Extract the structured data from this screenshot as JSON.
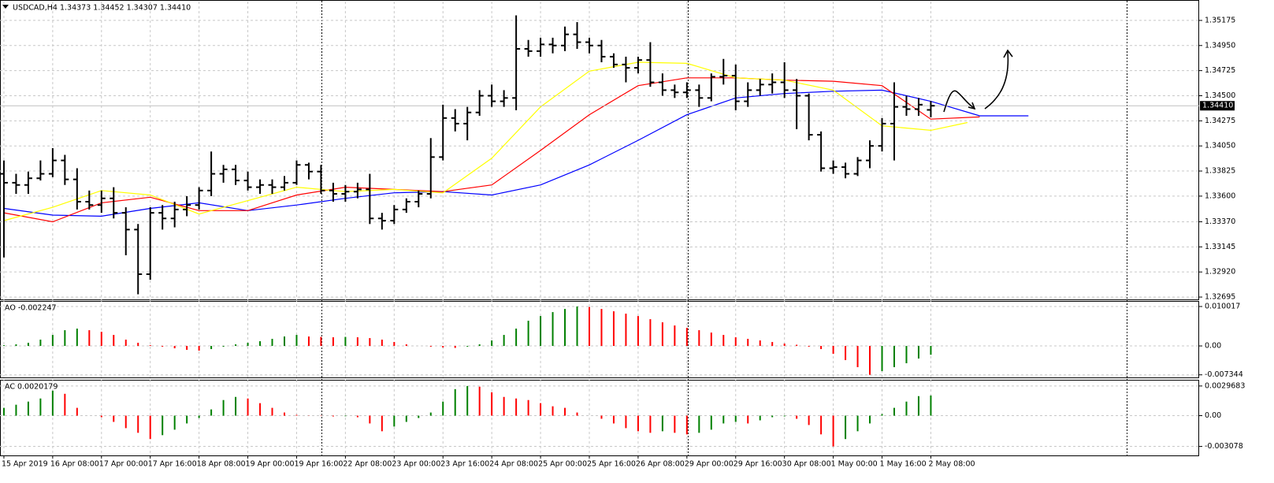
{
  "chart_data": [
    {
      "type": "ohlc",
      "title": "USDCAD,H4  1.34373 1.34452 1.34307 1.34410",
      "color": "#000000",
      "grid": true,
      "current_price": {
        "value": 1.3441,
        "label": "1.34410"
      },
      "xlim": [
        -0.32,
        98
      ],
      "ylim": [
        1.32674,
        1.35344
      ],
      "yticks": [
        1.35175,
        {
          "value": 1.3495,
          "label": "1.34950"
        },
        1.34725,
        {
          "value": 1.345,
          "label": "1.34500"
        },
        1.34275,
        {
          "value": 1.3405,
          "label": "1.34050"
        },
        1.33825,
        {
          "value": 1.336,
          "label": "1.33600"
        },
        {
          "value": 1.3337,
          "label": "1.33370"
        },
        1.33145,
        {
          "value": 1.3292,
          "label": "1.32920"
        },
        1.32695
      ],
      "categories": [
        "15 Apr 2019",
        null,
        null,
        null,
        "16 Apr 08:00",
        null,
        null,
        null,
        "17 Apr 00:00",
        null,
        null,
        null,
        "17 Apr 16:00",
        null,
        null,
        null,
        "18 Apr 08:00",
        null,
        null,
        null,
        "19 Apr 00:00",
        null,
        null,
        null,
        "19 Apr 16:00",
        null,
        null,
        null,
        "22 Apr 08:00",
        null,
        null,
        null,
        "23 Apr 00:00",
        null,
        null,
        null,
        "23 Apr 16:00",
        null,
        null,
        null,
        "24 Apr 08:00",
        null,
        null,
        null,
        "25 Apr 00:00",
        null,
        null,
        null,
        "25 Apr 16:00",
        null,
        null,
        null,
        "26 Apr 08:00",
        null,
        null,
        null,
        "29 Apr 00:00",
        null,
        null,
        null,
        "29 Apr 16:00",
        null,
        null,
        null,
        "30 Apr 08:00",
        null,
        null,
        null,
        "1 May 00:00",
        null,
        null,
        null,
        "1 May 16:00",
        null,
        null,
        null,
        "2 May 08:00"
      ],
      "open": [
        1.338,
        1.3372,
        1.337,
        1.3376,
        1.338,
        1.3392,
        1.3375,
        1.3355,
        1.3352,
        1.3358,
        1.3345,
        1.333,
        1.329,
        1.3345,
        1.334,
        1.3348,
        1.3352,
        1.3365,
        1.338,
        1.3384,
        1.3374,
        1.3368,
        1.337,
        1.3368,
        1.3372,
        1.3388,
        1.3382,
        1.3365,
        1.3362,
        1.3364,
        1.3366,
        1.334,
        1.3338,
        1.3348,
        1.3355,
        1.3362,
        1.3395,
        1.343,
        1.3425,
        1.3435,
        1.345,
        1.3445,
        1.3448,
        1.3492,
        1.349,
        1.3496,
        1.3495,
        1.3505,
        1.3498,
        1.3495,
        1.3485,
        1.3478,
        1.3475,
        1.3482,
        1.3462,
        1.3455,
        1.3453,
        1.3455,
        1.3448,
        1.3467,
        1.3468,
        1.3445,
        1.3455,
        1.346,
        1.3462,
        1.3455,
        1.345,
        1.3415,
        1.3385,
        1.3386,
        1.338,
        1.3392,
        1.3405,
        1.3425,
        1.344,
        1.3438,
        1.34373
      ],
      "high": [
        1.3392,
        1.338,
        1.3382,
        1.3392,
        1.3403,
        1.3397,
        1.3385,
        1.3365,
        1.3365,
        1.3368,
        1.335,
        1.3335,
        1.335,
        1.3352,
        1.3355,
        1.336,
        1.3368,
        1.34,
        1.3388,
        1.3388,
        1.3382,
        1.3375,
        1.3375,
        1.3378,
        1.3392,
        1.339,
        1.3388,
        1.3372,
        1.337,
        1.3372,
        1.338,
        1.3345,
        1.3352,
        1.3358,
        1.3365,
        1.3412,
        1.3442,
        1.3438,
        1.344,
        1.3455,
        1.346,
        1.3455,
        1.3522,
        1.35,
        1.3502,
        1.3502,
        1.3512,
        1.3516,
        1.3502,
        1.35,
        1.3488,
        1.3485,
        1.3485,
        1.3498,
        1.347,
        1.346,
        1.3462,
        1.346,
        1.347,
        1.3483,
        1.3478,
        1.3462,
        1.3465,
        1.347,
        1.348,
        1.3465,
        1.3452,
        1.3418,
        1.3392,
        1.339,
        1.3395,
        1.341,
        1.343,
        1.3462,
        1.345,
        1.3448,
        1.34452
      ],
      "low": [
        1.3305,
        1.3362,
        1.3362,
        1.3374,
        1.3377,
        1.337,
        1.3348,
        1.3348,
        1.3345,
        1.334,
        1.3307,
        1.3272,
        1.3285,
        1.333,
        1.3332,
        1.3342,
        1.3348,
        1.336,
        1.3372,
        1.337,
        1.3365,
        1.3362,
        1.3362,
        1.3365,
        1.337,
        1.3375,
        1.3362,
        1.3355,
        1.3355,
        1.3358,
        1.3335,
        1.333,
        1.3335,
        1.3345,
        1.335,
        1.3358,
        1.3392,
        1.3418,
        1.341,
        1.3432,
        1.344,
        1.344,
        1.3437,
        1.3485,
        1.3485,
        1.3488,
        1.349,
        1.3492,
        1.3488,
        1.348,
        1.3475,
        1.3462,
        1.347,
        1.3458,
        1.345,
        1.3448,
        1.3448,
        1.344,
        1.3445,
        1.346,
        1.3437,
        1.344,
        1.345,
        1.3452,
        1.3448,
        1.342,
        1.341,
        1.3382,
        1.338,
        1.3376,
        1.3378,
        1.3385,
        1.34,
        1.3392,
        1.3432,
        1.3432,
        1.34307
      ],
      "close": [
        1.3372,
        1.337,
        1.3376,
        1.338,
        1.3392,
        1.3375,
        1.3355,
        1.3352,
        1.3358,
        1.3345,
        1.333,
        1.329,
        1.3345,
        1.334,
        1.3348,
        1.3352,
        1.3365,
        1.338,
        1.3384,
        1.3374,
        1.3368,
        1.337,
        1.3368,
        1.3372,
        1.3388,
        1.3382,
        1.3365,
        1.3362,
        1.3364,
        1.3366,
        1.334,
        1.3338,
        1.3348,
        1.3355,
        1.3362,
        1.3395,
        1.343,
        1.3425,
        1.3435,
        1.345,
        1.3445,
        1.3448,
        1.3492,
        1.349,
        1.3496,
        1.3495,
        1.3505,
        1.3498,
        1.3495,
        1.3485,
        1.3478,
        1.3475,
        1.3482,
        1.3462,
        1.3455,
        1.3453,
        1.3455,
        1.3448,
        1.3467,
        1.3468,
        1.3445,
        1.3455,
        1.346,
        1.3462,
        1.3455,
        1.345,
        1.3415,
        1.3385,
        1.3386,
        1.338,
        1.3392,
        1.3405,
        1.3425,
        1.344,
        1.3438,
        1.3442,
        1.3441
      ],
      "series": [
        {
          "color": "#0000ff",
          "x": [
            0,
            4,
            8,
            12,
            16,
            20,
            24,
            28,
            32,
            36,
            40,
            44,
            48,
            52,
            56,
            60,
            64,
            68,
            72,
            76,
            80,
            84
          ],
          "values": [
            1.3349,
            1.3343,
            1.3342,
            1.3349,
            1.3354,
            1.3347,
            1.3352,
            1.3358,
            1.3363,
            1.3364,
            1.3361,
            1.337,
            1.3388,
            1.341,
            1.3433,
            1.3448,
            1.3452,
            1.3454,
            1.3455,
            1.3445,
            1.3432,
            1.3432
          ]
        },
        {
          "color": "#ff0000",
          "x": [
            0,
            4,
            8,
            12,
            16,
            20,
            24,
            28,
            32,
            36,
            40,
            44,
            48,
            52,
            56,
            60,
            64,
            68,
            72,
            76,
            80
          ],
          "values": [
            1.3345,
            1.3337,
            1.3354,
            1.3359,
            1.3347,
            1.3347,
            1.3361,
            1.3368,
            1.3366,
            1.3364,
            1.337,
            1.3401,
            1.3433,
            1.3459,
            1.3466,
            1.3466,
            1.3464,
            1.3463,
            1.3459,
            1.3429,
            1.3431
          ]
        },
        {
          "color": "#ffff00",
          "x": [
            0,
            4,
            8,
            12,
            16,
            20,
            24,
            28,
            32,
            36,
            40,
            44,
            48,
            52,
            56,
            60,
            64,
            68,
            72,
            76,
            79
          ],
          "values": [
            1.3338,
            1.335,
            1.3365,
            1.3361,
            1.3344,
            1.3356,
            1.3368,
            1.3364,
            1.3366,
            1.3363,
            1.3394,
            1.344,
            1.3472,
            1.348,
            1.3479,
            1.3466,
            1.3464,
            1.3455,
            1.3423,
            1.3419,
            1.3426
          ]
        }
      ]
    },
    {
      "type": "histogram",
      "title": "AO -0.002247",
      "up_color": "#008000",
      "down_color": "#ff0000",
      "grid": true,
      "ylim": [
        -0.0078,
        0.01122
      ],
      "yticks": [
        0.010017,
        {
          "value": 0,
          "label": "0.00"
        },
        -0.007344
      ],
      "values": [
        0.0002,
        0.0004,
        0.0008,
        0.0016,
        0.0028,
        0.004,
        0.0044,
        0.004,
        0.0036,
        0.0028,
        0.0016,
        0.0008,
        0.0002,
        -0.0002,
        -0.0006,
        -0.001,
        -0.0012,
        -0.0008,
        -0.0002,
        0.0004,
        0.0008,
        0.0012,
        0.0018,
        0.0024,
        0.0028,
        0.0024,
        0.0023,
        0.0022,
        0.0023,
        0.0022,
        0.002,
        0.0016,
        0.001,
        0.0004,
        0,
        -0.0002,
        -0.0004,
        -0.0005,
        -0.0002,
        0.0004,
        0.0014,
        0.0028,
        0.0044,
        0.0064,
        0.0076,
        0.0086,
        0.0094,
        0.010017,
        0.0099,
        0.0094,
        0.0088,
        0.0082,
        0.0076,
        0.0068,
        0.006,
        0.0052,
        0.0046,
        0.004,
        0.0034,
        0.0028,
        0.0022,
        0.0018,
        0.0014,
        0.001,
        0.0006,
        0.0003,
        -0.0002,
        -0.0008,
        -0.002,
        -0.0036,
        -0.0054,
        -0.007344,
        -0.0064,
        -0.0054,
        -0.0044,
        -0.0032,
        -0.002247
      ]
    },
    {
      "type": "histogram",
      "title": "AC 0.0020179",
      "up_color": "#008000",
      "down_color": "#ff0000",
      "grid": true,
      "ylim": [
        -0.00398,
        0.00351
      ],
      "yticks": [
        0.0029683,
        {
          "value": 0,
          "label": "0.00"
        },
        -0.003078
      ],
      "values": [
        0.000781,
        0.001093,
        0.001406,
        0.001718,
        0.002499,
        0.002187,
        0.000781,
        0,
        -0.000156,
        -0.000625,
        -0.00125,
        -0.001718,
        -0.002343,
        -0.001953,
        -0.001406,
        -0.000781,
        -0.000234,
        0.000625,
        0.001562,
        0.001874,
        0.001718,
        0.00125,
        0.000781,
        0.000312,
        7.8e-05,
        2e-05,
        -3e-05,
        -8e-05,
        -6e-05,
        -0.00016,
        -0.000781,
        -0.001562,
        -0.001093,
        -0.000625,
        -0.000234,
        0.000312,
        0.001406,
        0.002655,
        0.0029683,
        0.0029,
        0.002343,
        0.001874,
        0.001718,
        0.001562,
        0.00125,
        0.000937,
        0.000781,
        0.000312,
        0,
        -0.000312,
        -0.000781,
        -0.00125,
        -0.001562,
        -0.001718,
        -0.001562,
        -0.001718,
        -0.001874,
        -0.001718,
        -0.001406,
        -0.000781,
        -0.000625,
        -0.000781,
        -0.000469,
        -0.000156,
        -7.8e-05,
        -0.000312,
        -0.000937,
        -0.001874,
        -0.003078,
        -0.002343,
        -0.001562,
        -0.000781,
        0.000156,
        0.000781,
        0.001406,
        0.001953,
        0.0020179
      ]
    }
  ]
}
